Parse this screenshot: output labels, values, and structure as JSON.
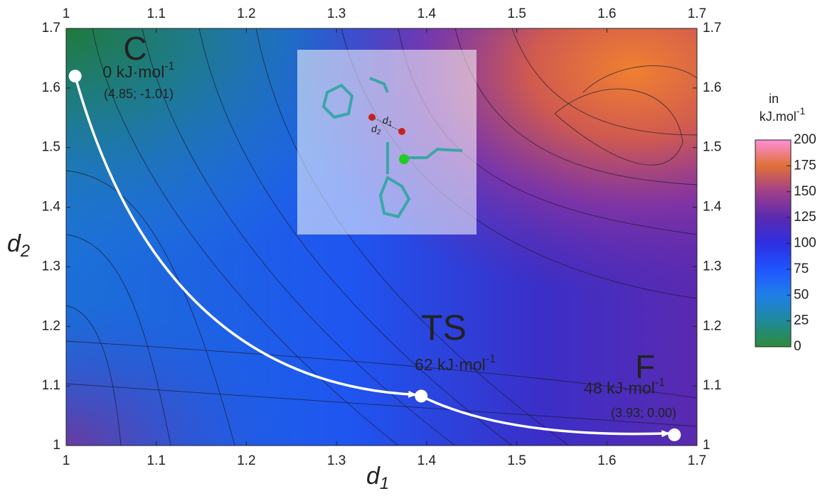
{
  "chart_data": {
    "type": "scatter",
    "x_label": {
      "text": "d",
      "sub": "1"
    },
    "y_label": {
      "text": "d",
      "sub": "2"
    },
    "xlim": [
      1,
      1.7
    ],
    "ylim": [
      1,
      1.7
    ],
    "xticks": [
      1,
      1.1,
      1.2,
      1.3,
      1.4,
      1.5,
      1.6,
      1.7
    ],
    "yticks": [
      1,
      1.1,
      1.2,
      1.3,
      1.4,
      1.5,
      1.6,
      1.7
    ],
    "path_color": "#ffffff",
    "points": [
      {
        "name": "C",
        "x": 1.01,
        "y": 1.62,
        "energy": "0 kJ·mol",
        "energy_exp": "-1",
        "coords": "(4.85; -1.01)"
      },
      {
        "name": "TS",
        "x": 1.394,
        "y": 1.083,
        "energy": "62 kJ·mol",
        "energy_exp": "-1"
      },
      {
        "name": "F",
        "x": 1.675,
        "y": 1.018,
        "energy": "48 kJ·mol",
        "energy_exp": "-1",
        "coords": "(3.93; 0.00)"
      }
    ],
    "inset_labels": [
      {
        "text": "d",
        "sub": "1"
      },
      {
        "text": "d",
        "sub": "2"
      }
    ],
    "colorbar": {
      "title": "in",
      "unit": "kJ.mol",
      "unit_exp": "-1",
      "lim": [
        0,
        200
      ],
      "ticks": [
        0,
        25,
        50,
        75,
        100,
        125,
        150,
        175,
        200
      ]
    }
  }
}
